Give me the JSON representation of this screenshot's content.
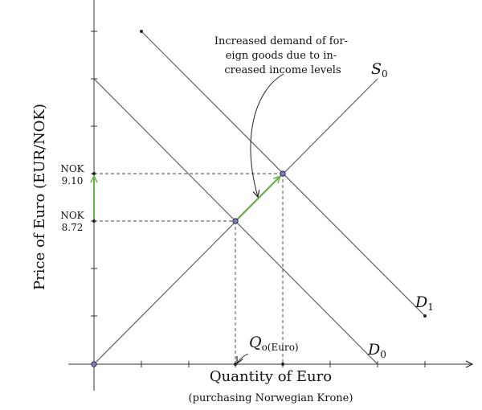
{
  "axes": {
    "y_title": "Price of Euro (EUR/NOK)",
    "x_title": "Quantity of Euro",
    "x_subtitle": "(purchasing Norwegian Krone)"
  },
  "price_labels": {
    "high_currency": "NOK",
    "high_value": "9.10",
    "low_currency": "NOK",
    "low_value": "8.72"
  },
  "curves": {
    "supply": {
      "base": "S",
      "sub": "0"
    },
    "demand_old": {
      "base": "D",
      "sub": "0"
    },
    "demand_new": {
      "base": "D",
      "sub": "1"
    }
  },
  "quantity_label": {
    "base": "Q",
    "sub": "o(Euro)"
  },
  "annotation": {
    "lines": [
      "Increased demand of for-",
      "eign goods due to in-",
      "creased income levels"
    ]
  },
  "colors": {
    "shift_arrow": "#6bb24a",
    "equilibrium_point": "#7b78d6"
  }
}
